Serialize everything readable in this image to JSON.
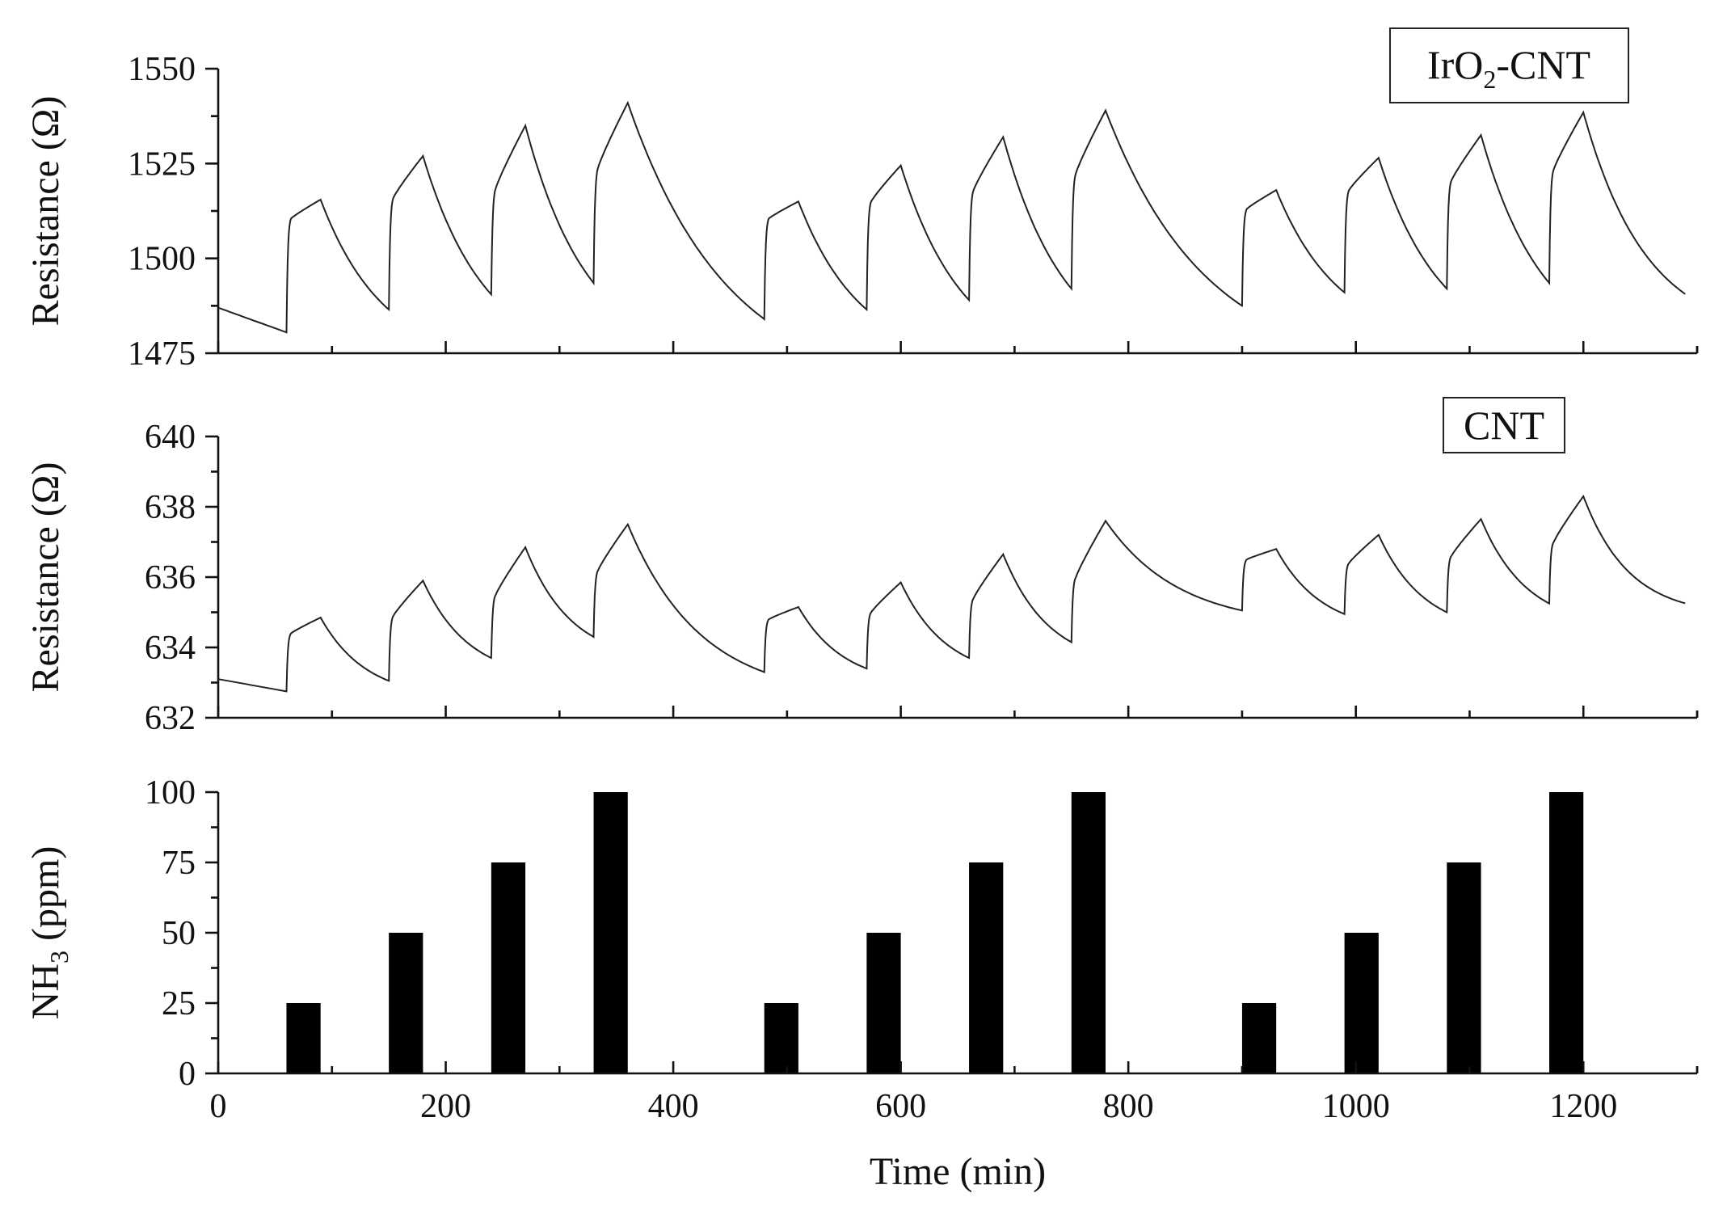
{
  "chart_data": [
    {
      "type": "line",
      "panel": "top",
      "legend": "IrO",
      "legend_sub": "2",
      "legend_tail": "-CNT",
      "ylabel": "Resistance (Ω)",
      "xlim": [
        0,
        1300
      ],
      "ylim": [
        1475,
        1550
      ],
      "yticks": [
        1475,
        1500,
        1525,
        1550
      ],
      "pulses": [
        {
          "start": 60,
          "end": 90,
          "base": 1480.5,
          "plateau": 1510.5,
          "peak": 1515.5
        },
        {
          "start": 150,
          "end": 180,
          "base": 1486.5,
          "plateau": 1516.0,
          "peak": 1527.0
        },
        {
          "start": 240,
          "end": 270,
          "base": 1490.5,
          "plateau": 1518.5,
          "peak": 1535.0
        },
        {
          "start": 330,
          "end": 360,
          "base": 1493.5,
          "plateau": 1524.0,
          "peak": 1541.0
        },
        {
          "start": 480,
          "end": 510,
          "base": 1484.0,
          "plateau": 1510.5,
          "peak": 1515.0
        },
        {
          "start": 570,
          "end": 600,
          "base": 1486.5,
          "plateau": 1515.0,
          "peak": 1524.5
        },
        {
          "start": 660,
          "end": 690,
          "base": 1489.0,
          "plateau": 1518.0,
          "peak": 1532.0
        },
        {
          "start": 750,
          "end": 780,
          "base": 1492.0,
          "plateau": 1522.5,
          "peak": 1539.0
        },
        {
          "start": 900,
          "end": 930,
          "base": 1487.5,
          "plateau": 1513.0,
          "peak": 1518.0
        },
        {
          "start": 990,
          "end": 1020,
          "base": 1491.0,
          "plateau": 1518.0,
          "peak": 1526.5
        },
        {
          "start": 1080,
          "end": 1110,
          "base": 1492.0,
          "plateau": 1520.5,
          "peak": 1532.5
        },
        {
          "start": 1170,
          "end": 1200,
          "base": 1493.5,
          "plateau": 1523.5,
          "peak": 1538.5
        }
      ],
      "end": {
        "t": 1290,
        "value": 1490.5
      },
      "start": {
        "t": 0,
        "value": 1487.0
      }
    },
    {
      "type": "line",
      "panel": "middle",
      "legend": "CNT",
      "ylabel": "Resistance (Ω)",
      "xlim": [
        0,
        1300
      ],
      "ylim": [
        632,
        640
      ],
      "yticks": [
        632,
        634,
        636,
        638,
        640
      ],
      "pulses": [
        {
          "start": 60,
          "end": 90,
          "base": 632.75,
          "plateau": 634.4,
          "peak": 634.85
        },
        {
          "start": 150,
          "end": 180,
          "base": 633.05,
          "plateau": 634.9,
          "peak": 635.9
        },
        {
          "start": 240,
          "end": 270,
          "base": 633.7,
          "plateau": 635.5,
          "peak": 636.85
        },
        {
          "start": 330,
          "end": 360,
          "base": 634.3,
          "plateau": 636.2,
          "peak": 637.5
        },
        {
          "start": 480,
          "end": 510,
          "base": 633.3,
          "plateau": 634.8,
          "peak": 635.15
        },
        {
          "start": 570,
          "end": 600,
          "base": 633.4,
          "plateau": 635.0,
          "peak": 635.85
        },
        {
          "start": 660,
          "end": 690,
          "base": 633.7,
          "plateau": 635.4,
          "peak": 636.65
        },
        {
          "start": 750,
          "end": 780,
          "base": 634.15,
          "plateau": 636.0,
          "peak": 637.6
        },
        {
          "start": 900,
          "end": 930,
          "base": 635.05,
          "plateau": 636.5,
          "peak": 636.8
        },
        {
          "start": 990,
          "end": 1020,
          "base": 634.95,
          "plateau": 636.4,
          "peak": 637.2
        },
        {
          "start": 1080,
          "end": 1110,
          "base": 635.0,
          "plateau": 636.6,
          "peak": 637.65
        },
        {
          "start": 1170,
          "end": 1200,
          "base": 635.25,
          "plateau": 637.0,
          "peak": 638.3
        }
      ],
      "end": {
        "t": 1290,
        "value": 635.25
      },
      "start": {
        "t": 0,
        "value": 633.1
      }
    },
    {
      "type": "bar",
      "panel": "bottom",
      "ylabel": "NH",
      "ylabel_sub": "3",
      "ylabel_tail": " (ppm)",
      "xlabel": "Time (min)",
      "xlim": [
        0,
        1300
      ],
      "ylim": [
        0,
        100
      ],
      "yticks": [
        0,
        25,
        50,
        75,
        100
      ],
      "xticks": [
        0,
        200,
        400,
        600,
        800,
        1000,
        1200
      ],
      "bars": [
        {
          "start": 60,
          "end": 90,
          "value": 25
        },
        {
          "start": 150,
          "end": 180,
          "value": 50
        },
        {
          "start": 240,
          "end": 270,
          "value": 75
        },
        {
          "start": 330,
          "end": 360,
          "value": 100
        },
        {
          "start": 480,
          "end": 510,
          "value": 25
        },
        {
          "start": 570,
          "end": 600,
          "value": 50
        },
        {
          "start": 660,
          "end": 690,
          "value": 75
        },
        {
          "start": 750,
          "end": 780,
          "value": 100
        },
        {
          "start": 900,
          "end": 930,
          "value": 25
        },
        {
          "start": 990,
          "end": 1020,
          "value": 50
        },
        {
          "start": 1080,
          "end": 1110,
          "value": 75
        },
        {
          "start": 1170,
          "end": 1200,
          "value": 100
        }
      ]
    }
  ]
}
